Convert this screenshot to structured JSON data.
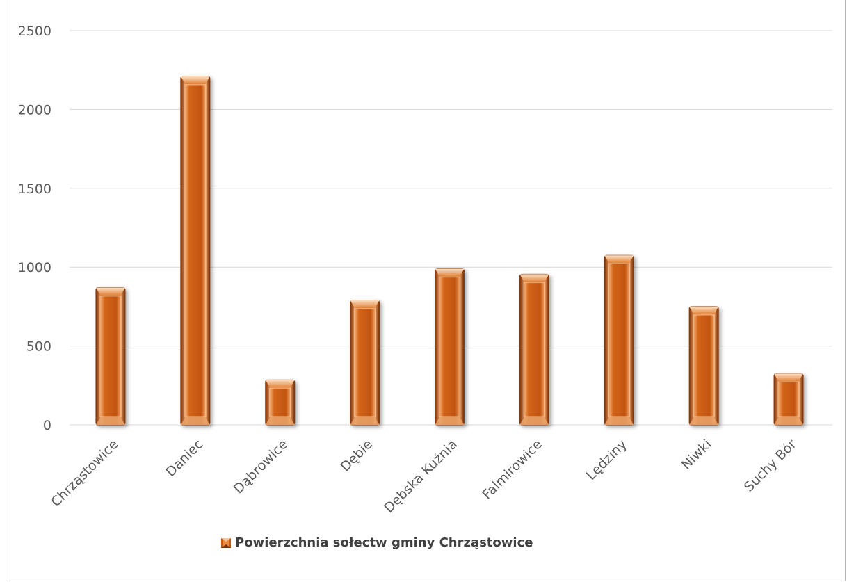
{
  "chart_data": {
    "type": "bar",
    "categories": [
      "Chrząstowice",
      "Daniec",
      "Dąbrowice",
      "Dębie",
      "Dębska Kuźnia",
      "Falmirowice",
      "Lędziny",
      "Niwki",
      "Suchy Bór"
    ],
    "series": [
      {
        "name": "Powierzchnia sołectw gminy Chrząstowice",
        "values": [
          870,
          2210,
          285,
          790,
          990,
          955,
          1075,
          750,
          325
        ]
      }
    ],
    "ylim": [
      0,
      2500
    ],
    "yticks": [
      0,
      500,
      1000,
      1500,
      2000,
      2500
    ],
    "grid": true,
    "legend": "bottom",
    "colors": {
      "bar_main": "#c85a14",
      "bar_light": "#f2a466",
      "bar_dark": "#7a2e05",
      "bar_edge": "#f7d2b0",
      "grid": "#d9d9d9",
      "axis_text": "#595959"
    }
  }
}
